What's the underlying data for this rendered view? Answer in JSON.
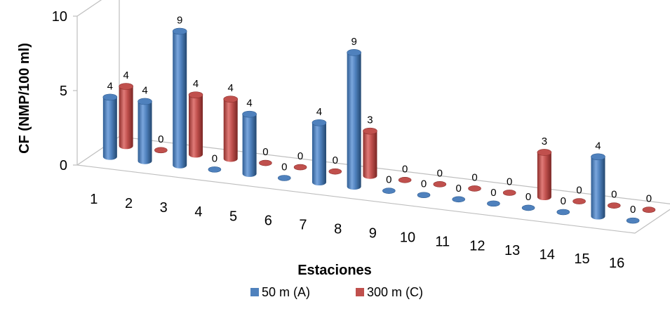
{
  "chart_data": {
    "type": "bar",
    "style": "3d-cylinder",
    "ylabel": "CF (NMP/100 ml)",
    "xlabel": "Estaciones",
    "ylim": [
      0,
      10
    ],
    "yticks": [
      "0",
      "5",
      "10"
    ],
    "categories": [
      "1",
      "2",
      "3",
      "4",
      "5",
      "6",
      "7",
      "8",
      "9",
      "10",
      "11",
      "12",
      "13",
      "14",
      "15",
      "16"
    ],
    "series": [
      {
        "name": "50 m (A)",
        "color": "#4f81bd",
        "values": [
          4,
          4,
          9,
          0,
          4,
          0,
          4,
          9,
          0,
          0,
          0,
          0,
          0,
          0,
          4,
          0
        ]
      },
      {
        "name": "300 m (C)",
        "color": "#c0504d",
        "values": [
          4,
          0,
          4,
          4,
          0,
          0,
          0,
          3,
          0,
          0,
          0,
          0,
          3,
          0,
          0,
          0
        ]
      }
    ],
    "legend_position": "bottom",
    "grid": false
  }
}
